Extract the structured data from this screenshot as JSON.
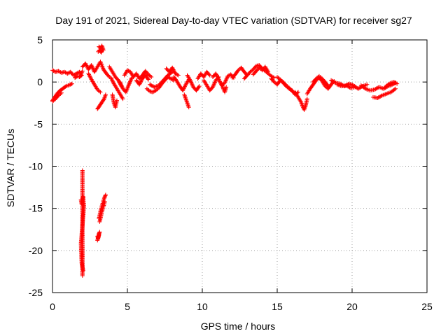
{
  "chart_data": {
    "type": "scatter",
    "title": "Day 191 of 2021, Sidereal Day-to-day VTEC variation (SDTVAR) for receiver sg27",
    "xlabel": "GPS time / hours",
    "ylabel": "SDTVAR / TECUs",
    "xlim": [
      0,
      25
    ],
    "ylim": [
      -25,
      5
    ],
    "xticks": [
      0,
      5,
      10,
      15,
      20,
      25
    ],
    "yticks": [
      5,
      0,
      -5,
      -10,
      -15,
      -20,
      -25
    ],
    "grid": true,
    "marker": "+",
    "series": [
      {
        "name": "SDTVAR",
        "color": "#ff0000",
        "segments": [
          {
            "x": [
              0.0,
              0.15,
              0.3,
              0.45,
              0.6,
              0.75,
              0.9,
              1.05,
              1.2,
              1.3
            ],
            "y": [
              -2.2,
              -1.8,
              -1.4,
              -1.1,
              -0.9,
              -0.7,
              -0.5,
              -0.4,
              -0.3,
              -0.2
            ]
          },
          {
            "x": [
              0.0,
              0.2,
              0.4,
              0.6
            ],
            "y": [
              -2.3,
              -2.0,
              -1.6,
              -1.3
            ]
          },
          {
            "x": [
              0.0,
              0.2,
              0.4,
              0.6,
              0.8,
              1.0,
              1.2,
              1.4,
              1.6,
              1.8,
              1.9,
              2.0
            ],
            "y": [
              1.4,
              1.2,
              1.3,
              1.1,
              1.2,
              1.0,
              1.2,
              0.8,
              1.0,
              1.2,
              0.9,
              1.3
            ]
          },
          {
            "x": [
              1.5,
              1.65,
              1.8,
              1.95
            ],
            "y": [
              0.5,
              0.7,
              0.6,
              0.8
            ]
          },
          {
            "x": [
              2.0,
              2.2,
              2.4,
              2.6,
              2.8,
              3.0,
              3.2,
              3.4,
              3.6,
              3.8
            ],
            "y": [
              1.8,
              2.2,
              1.5,
              2.0,
              1.2,
              1.8,
              2.4,
              1.5,
              1.0,
              0.6
            ]
          },
          {
            "x": [
              2.4,
              2.6,
              2.8,
              3.0,
              3.2
            ],
            "y": [
              1.0,
              0.3,
              -0.3,
              -0.9,
              -1.2
            ]
          },
          {
            "x": [
              3.1,
              3.2,
              3.3,
              3.4
            ],
            "y": [
              4.2,
              4.0,
              4.3,
              3.8
            ]
          },
          {
            "x": [
              3.05,
              3.15,
              3.25,
              3.35
            ],
            "y": [
              3.6,
              3.8,
              3.5,
              3.9
            ]
          },
          {
            "x": [
              3.0,
              3.15,
              3.3,
              3.45,
              3.55
            ],
            "y": [
              -3.2,
              -2.8,
              -2.4,
              -2.0,
              -1.5
            ]
          },
          {
            "x": [
              3.8,
              4.0,
              4.2,
              4.4,
              4.6
            ],
            "y": [
              1.8,
              1.2,
              0.6,
              0.2,
              -0.5
            ]
          },
          {
            "x": [
              3.9,
              4.1,
              4.3,
              4.5,
              4.7
            ],
            "y": [
              0.5,
              -0.2,
              -0.8,
              -1.4,
              -2.0
            ]
          },
          {
            "x": [
              4.0,
              4.1,
              4.2,
              4.3
            ],
            "y": [
              -1.5,
              -2.5,
              -3.0,
              -2.2
            ]
          },
          {
            "x": [
              4.5,
              4.7,
              4.9,
              5.1,
              5.3
            ],
            "y": [
              0.0,
              -0.8,
              -1.2,
              -0.3,
              0.5
            ]
          },
          {
            "x": [
              4.8,
              5.0,
              5.2,
              5.4,
              5.6,
              5.8,
              6.0,
              6.2,
              6.4,
              6.6
            ],
            "y": [
              0.8,
              1.4,
              1.2,
              0.6,
              1.0,
              0.4,
              0.8,
              1.3,
              0.9,
              0.6
            ]
          },
          {
            "x": [
              5.6,
              5.8,
              6.0,
              6.2,
              6.4
            ],
            "y": [
              0.2,
              -0.3,
              0.4,
              0.8,
              0.3
            ]
          },
          {
            "x": [
              6.3,
              6.5,
              6.7,
              6.9,
              7.1,
              7.3,
              7.5,
              7.7,
              7.9,
              8.1
            ],
            "y": [
              -0.8,
              -1.1,
              -1.2,
              -1.0,
              -0.7,
              -0.2,
              0.2,
              0.6,
              0.4,
              0.2
            ]
          },
          {
            "x": [
              6.5,
              6.8,
              7.1,
              7.4,
              7.7,
              8.0
            ],
            "y": [
              -0.3,
              -0.6,
              -0.4,
              0.2,
              0.8,
              1.2
            ]
          },
          {
            "x": [
              7.6,
              7.8,
              8.0,
              8.2,
              8.4
            ],
            "y": [
              1.6,
              1.2,
              1.7,
              1.0,
              0.8
            ]
          },
          {
            "x": [
              8.1,
              8.3,
              8.5,
              8.7,
              8.9,
              9.1
            ],
            "y": [
              0.6,
              0.1,
              -0.5,
              -1.0,
              -0.3,
              0.3
            ]
          },
          {
            "x": [
              8.8,
              8.9,
              9.0,
              9.1
            ],
            "y": [
              -1.5,
              -2.0,
              -2.5,
              -3.0
            ]
          },
          {
            "x": [
              9.0,
              9.2,
              9.4,
              9.6,
              9.8
            ],
            "y": [
              0.8,
              0.2,
              -0.6,
              -1.0,
              -0.5
            ]
          },
          {
            "x": [
              9.7,
              9.9,
              10.1,
              10.3,
              10.5
            ],
            "y": [
              0.4,
              1.0,
              0.6,
              1.2,
              0.8
            ]
          },
          {
            "x": [
              10.1,
              10.3,
              10.5,
              10.7,
              10.9,
              11.1
            ],
            "y": [
              0.2,
              -0.4,
              -1.0,
              -0.6,
              0.2,
              0.6
            ]
          },
          {
            "x": [
              10.7,
              10.9,
              11.1,
              11.3,
              11.5,
              11.7,
              11.9,
              12.1
            ],
            "y": [
              0.6,
              1.0,
              0.3,
              -0.4,
              -0.1,
              0.7,
              0.9,
              0.5
            ]
          },
          {
            "x": [
              11.3,
              11.4,
              11.5,
              11.6
            ],
            "y": [
              -0.2,
              -0.8,
              -1.2,
              -0.6
            ]
          },
          {
            "x": [
              12.0,
              12.2,
              12.4,
              12.6,
              12.8,
              13.0
            ],
            "y": [
              0.5,
              0.9,
              1.4,
              1.7,
              1.2,
              0.8
            ]
          },
          {
            "x": [
              12.8,
              13.0,
              13.2,
              13.4,
              13.6,
              13.8,
              14.0,
              14.2,
              14.4,
              14.6,
              14.8
            ],
            "y": [
              0.4,
              0.8,
              1.2,
              1.5,
              1.9,
              2.0,
              1.6,
              1.3,
              1.0,
              0.7,
              0.5
            ]
          },
          {
            "x": [
              13.4,
              13.6,
              13.8,
              14.0,
              14.2,
              14.4
            ],
            "y": [
              0.9,
              1.3,
              1.7,
              1.4,
              1.8,
              1.2
            ]
          },
          {
            "x": [
              14.6,
              14.8,
              15.0,
              15.2,
              15.4,
              15.6,
              15.8,
              16.0,
              16.2,
              16.4
            ],
            "y": [
              0.4,
              0.0,
              -0.3,
              0.2,
              -0.1,
              -0.5,
              -0.8,
              -1.0,
              -1.5,
              -1.2
            ]
          },
          {
            "x": [
              15.0,
              15.2,
              15.4,
              15.6,
              15.8,
              16.0
            ],
            "y": [
              0.6,
              0.3,
              0.0,
              -0.4,
              -0.7,
              -1.1
            ]
          },
          {
            "x": [
              16.2,
              16.4,
              16.6,
              16.7,
              16.8,
              16.9,
              17.0
            ],
            "y": [
              -1.2,
              -1.8,
              -2.4,
              -2.9,
              -3.3,
              -2.8,
              -2.0
            ]
          },
          {
            "x": [
              17.0,
              17.2,
              17.4,
              17.6,
              17.8,
              18.0,
              18.2,
              18.4,
              18.6,
              18.8
            ],
            "y": [
              -1.4,
              -0.8,
              -0.3,
              0.2,
              0.5,
              0.1,
              -0.5,
              -0.8,
              -0.3,
              0.1
            ]
          },
          {
            "x": [
              17.4,
              17.6,
              17.8,
              18.0,
              18.2,
              18.4
            ],
            "y": [
              0.0,
              0.4,
              0.7,
              0.4,
              0.0,
              -0.5
            ]
          },
          {
            "x": [
              18.6,
              18.9,
              19.2,
              19.5,
              19.8,
              20.1,
              20.4,
              20.7,
              21.0
            ],
            "y": [
              0.2,
              -0.1,
              -0.2,
              -0.5,
              -0.2,
              -0.4,
              -0.8,
              -0.5,
              -0.3
            ]
          },
          {
            "x": [
              19.0,
              19.3,
              19.6,
              19.9,
              20.2
            ],
            "y": [
              -0.3,
              -0.5,
              -0.4,
              -0.7,
              -0.6
            ]
          },
          {
            "x": [
              20.6,
              20.9,
              21.2,
              21.5,
              21.8,
              22.1,
              22.4,
              22.7,
              22.9
            ],
            "y": [
              -0.4,
              -0.8,
              -1.0,
              -0.9,
              -0.6,
              -0.8,
              -0.5,
              -0.3,
              -0.1
            ]
          },
          {
            "x": [
              21.4,
              21.7,
              22.0,
              22.3,
              22.6,
              22.9
            ],
            "y": [
              -1.8,
              -1.9,
              -1.6,
              -1.4,
              -1.2,
              -0.8
            ]
          },
          {
            "x": [
              22.2,
              22.4,
              22.6,
              22.8,
              23.0
            ],
            "y": [
              -0.6,
              -0.3,
              -0.1,
              0.0,
              -0.2
            ]
          },
          {
            "x": [
              2.0,
              2.0,
              2.0,
              2.0,
              2.0,
              2.0,
              2.0,
              2.0,
              2.0,
              2.0,
              2.0,
              2.0,
              2.0,
              2.0,
              2.0
            ],
            "y": [
              -10.5,
              -13.4,
              -13.8,
              -14.2,
              -14.6,
              -18.5,
              -19.0,
              -19.5,
              -20.0,
              -20.6,
              -21.2,
              -21.8,
              -22.2,
              -22.6,
              -23.0
            ]
          },
          {
            "x": [
              1.9,
              1.95,
              2.05,
              2.1,
              1.9,
              1.95,
              2.05
            ],
            "y": [
              -14.0,
              -14.5,
              -13.6,
              -14.8,
              -19.2,
              -21.5,
              -22.4
            ]
          },
          {
            "x": [
              3.0,
              3.05,
              3.1,
              3.15,
              3.0,
              3.05,
              3.1
            ],
            "y": [
              -18.3,
              -18.6,
              -18.0,
              -17.8,
              -18.8,
              -18.4,
              -18.2
            ]
          },
          {
            "x": [
              3.1,
              3.15,
              3.2,
              3.25,
              3.3,
              3.35,
              3.4,
              3.45,
              3.5,
              3.55
            ],
            "y": [
              -16.2,
              -15.8,
              -15.4,
              -15.0,
              -14.7,
              -14.4,
              -14.1,
              -13.8,
              -13.6,
              -13.4
            ]
          },
          {
            "x": [
              3.15,
              3.2,
              3.25,
              3.3,
              3.35,
              3.4,
              3.45,
              3.5
            ],
            "y": [
              -16.6,
              -16.2,
              -15.8,
              -15.4,
              -15.1,
              -14.8,
              -14.5,
              -14.2
            ]
          }
        ]
      }
    ]
  }
}
